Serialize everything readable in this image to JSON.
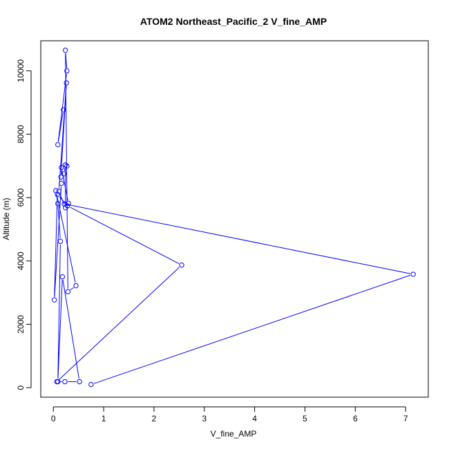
{
  "chart_data": {
    "type": "line",
    "title": "ATOM2 Northeast_Pacific_2 V_fine_AMP",
    "xlabel": "V_fine_AMP",
    "ylabel": "Altitude (m)",
    "xlim": [
      -0.25,
      7.45
    ],
    "ylim": [
      -300,
      10950
    ],
    "xticks": [
      0,
      1,
      2,
      3,
      4,
      5,
      6,
      7
    ],
    "yticks": [
      0,
      2000,
      4000,
      6000,
      8000,
      10000
    ],
    "grid": false,
    "marker": "open-circle",
    "series_color": "#0000ff",
    "series": [
      {
        "x": [
          0.75,
          7.15,
          0.22,
          0.3,
          0.16,
          0.27,
          0.21,
          0.24,
          0.24,
          0.11,
          0.26,
          0.15,
          0.16,
          0.02,
          0.08,
          0.28,
          2.55,
          0.07,
          0.23,
          0.52,
          0.18,
          0.09,
          0.14,
          0.09,
          0.05,
          0.45,
          0.29,
          0.24,
          0.27,
          0.09,
          0.2
        ],
        "y": [
          100,
          3580,
          5800,
          5820,
          6950,
          7000,
          6750,
          7030,
          5680,
          6200,
          9620,
          6650,
          6450,
          2770,
          6100,
          5740,
          3870,
          190,
          190,
          190,
          3500,
          190,
          4620,
          5810,
          6220,
          3220,
          3030,
          10650,
          10000,
          7670,
          8770
        ]
      }
    ]
  }
}
